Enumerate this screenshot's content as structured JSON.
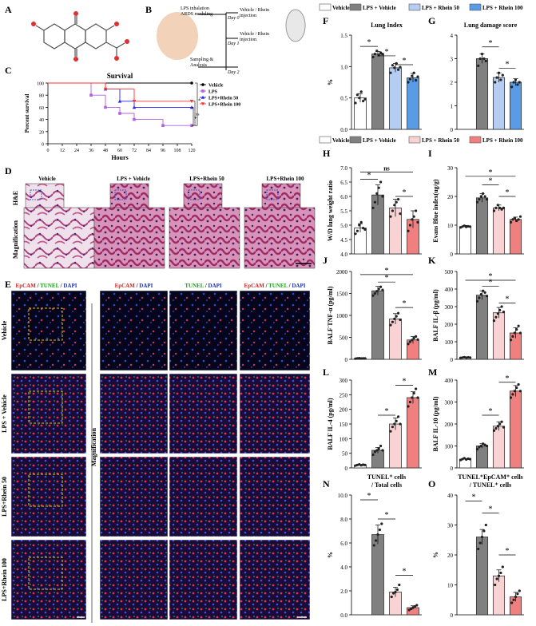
{
  "panel_letters": [
    "A",
    "B",
    "C",
    "D",
    "E",
    "F",
    "G",
    "H",
    "I",
    "J",
    "K",
    "L",
    "M",
    "N",
    "O"
  ],
  "schematic": {
    "labels": [
      "LPS inhalation\nARDS modeling",
      "Day 0",
      "Vehicle / Rhein\ninjection",
      "Day 1",
      "Vehicle / Rhein\ninjection",
      "Sampling &\nAnalysis",
      "Day 2"
    ]
  },
  "legend_top": {
    "items": [
      {
        "label": "Vehicle",
        "color": "#ffffff"
      },
      {
        "label": "LPS + Vehicle",
        "color": "#808080"
      },
      {
        "label": "LPS + Rhein 50",
        "color": "#b4cdf0"
      },
      {
        "label": "LPS + Rhein 100",
        "color": "#5a9be6"
      }
    ]
  },
  "legend_mid": {
    "items": [
      {
        "label": "Vehicle",
        "color": "#ffffff"
      },
      {
        "label": "LPS + Vehicle",
        "color": "#808080"
      },
      {
        "label": "LPS + Rhein 50",
        "color": "#f9d3d3"
      },
      {
        "label": "LPS + Rhein 100",
        "color": "#f08080"
      }
    ]
  },
  "histology": {
    "columns": [
      "Vehicle",
      "LPS + Vehicle",
      "LPS+Rhein 50",
      "LPS+Rhein 100"
    ],
    "rows": [
      "H&E",
      "Magnification"
    ]
  },
  "fluorescence": {
    "column_titles": [
      [
        {
          "t": "EpCAM",
          "c": "#e02020"
        },
        {
          "t": " / ",
          "c": "#000"
        },
        {
          "t": "TUNEL",
          "c": "#1aa01a"
        },
        {
          "t": " / ",
          "c": "#000"
        },
        {
          "t": "DAPI",
          "c": "#1a30c0"
        }
      ],
      [
        {
          "t": "EpCAM",
          "c": "#e02020"
        },
        {
          "t": " / ",
          "c": "#000"
        },
        {
          "t": "DAPI",
          "c": "#1a30c0"
        }
      ],
      [
        {
          "t": "TUNEL",
          "c": "#1aa01a"
        },
        {
          "t": " / ",
          "c": "#000"
        },
        {
          "t": "DAPI",
          "c": "#1a30c0"
        }
      ],
      [
        {
          "t": "EpCAM",
          "c": "#e02020"
        },
        {
          "t": " / ",
          "c": "#000"
        },
        {
          "t": "TUNEL",
          "c": "#1aa01a"
        },
        {
          "t": " / ",
          "c": "#000"
        },
        {
          "t": "DAPI",
          "c": "#1a30c0"
        }
      ]
    ],
    "rows": [
      "Vehicle",
      "LPS + Vehicle",
      "LPS+Rhein 50",
      "LPS+Rhein 100"
    ],
    "side_label": "Magnification"
  },
  "chart_data": [
    {
      "id": "C",
      "type": "line",
      "title": "Survival",
      "xlabel": "Hours",
      "ylabel": "Percent survival",
      "xlim": [
        0,
        120
      ],
      "ylim": [
        0,
        100
      ],
      "xticks": [
        0,
        12,
        24,
        36,
        48,
        60,
        72,
        84,
        96,
        108,
        120
      ],
      "yticks": [
        0,
        20,
        40,
        60,
        80,
        100
      ],
      "series": [
        {
          "name": "Vehicle",
          "color": "#000000",
          "marker": "circle",
          "points": [
            [
              0,
              100
            ],
            [
              120,
              100
            ]
          ]
        },
        {
          "name": "LPS",
          "color": "#b060e0",
          "marker": "square",
          "points": [
            [
              0,
              100
            ],
            [
              36,
              100
            ],
            [
              36,
              80
            ],
            [
              48,
              80
            ],
            [
              48,
              60
            ],
            [
              60,
              60
            ],
            [
              60,
              50
            ],
            [
              72,
              50
            ],
            [
              72,
              40
            ],
            [
              84,
              40
            ],
            [
              84,
              40
            ],
            [
              96,
              40
            ],
            [
              96,
              30
            ],
            [
              120,
              30
            ]
          ]
        },
        {
          "name": "LPS+Rhein 50",
          "color": "#2020ff",
          "marker": "triangle",
          "points": [
            [
              0,
              100
            ],
            [
              48,
              100
            ],
            [
              48,
              90
            ],
            [
              60,
              90
            ],
            [
              60,
              70
            ],
            [
              72,
              70
            ],
            [
              72,
              60
            ],
            [
              120,
              60
            ]
          ]
        },
        {
          "name": "LPS+Rhein 100",
          "color": "#ff3030",
          "marker": "invtriangle",
          "points": [
            [
              0,
              100
            ],
            [
              48,
              100
            ],
            [
              48,
              90
            ],
            [
              72,
              90
            ],
            [
              72,
              70
            ],
            [
              120,
              70
            ]
          ]
        }
      ],
      "annotations": [
        "*",
        "ns",
        "*"
      ]
    },
    {
      "id": "F",
      "type": "bar",
      "title": "Lung Index",
      "ylabel": "%",
      "ylim": [
        0,
        1.5
      ],
      "yticks": [
        0,
        0.5,
        1.0,
        1.5
      ],
      "yfmt": 1,
      "palette": "blue",
      "categories": [
        "Vehicle",
        "LPS + Vehicle",
        "LPS + Rhein 50",
        "LPS + Rhein 100"
      ],
      "values": [
        0.5,
        1.2,
        0.98,
        0.82
      ],
      "errors": [
        0.07,
        0.04,
        0.07,
        0.07
      ],
      "points": [
        [
          0.42,
          0.55,
          0.5,
          0.6,
          0.45,
          0.48
        ],
        [
          1.15,
          1.2,
          1.25,
          1.18,
          1.22,
          1.2
        ],
        [
          0.9,
          1.02,
          0.98,
          1.05,
          0.95,
          0.99
        ],
        [
          0.75,
          0.8,
          0.85,
          0.9,
          0.78,
          0.84
        ]
      ],
      "sig": [
        [
          0,
          1,
          1.32,
          "*"
        ],
        [
          1,
          2,
          1.17,
          "*"
        ],
        [
          2,
          3,
          1.03,
          "*"
        ]
      ]
    },
    {
      "id": "G",
      "type": "bar",
      "title": "Lung damage score",
      "ylabel": "",
      "ylim": [
        0,
        4
      ],
      "yticks": [
        0,
        1,
        2,
        3,
        4
      ],
      "palette": "blue",
      "categories": [
        "Vehicle",
        "LPS + Vehicle",
        "LPS + Rhein 50",
        "LPS + Rhein 100"
      ],
      "values": [
        null,
        3.0,
        2.2,
        2.0
      ],
      "errors": [
        0,
        0.2,
        0.2,
        0.15
      ],
      "points": [
        [],
        [
          2.7,
          3.0,
          3.2,
          3.0,
          2.9
        ],
        [
          2.0,
          2.2,
          2.4,
          2.1,
          2.3
        ],
        [
          1.8,
          2.0,
          2.1,
          1.9,
          2.0
        ]
      ],
      "sig": [
        [
          1,
          2,
          3.5,
          "*"
        ],
        [
          2,
          3,
          2.6,
          "*"
        ]
      ]
    },
    {
      "id": "H",
      "type": "bar",
      "title": "",
      "ylabel": "W/D lung weight ratio",
      "ylim": [
        4.0,
        7.0
      ],
      "yticks": [
        4.0,
        4.5,
        5.0,
        5.5,
        6.0,
        6.5,
        7.0
      ],
      "yfmt": 1,
      "palette": "red",
      "categories": [
        "Vehicle",
        "LPS + Vehicle",
        "LPS + Rhein 50",
        "LPS + Rhein 100"
      ],
      "values": [
        4.9,
        6.05,
        5.6,
        5.2
      ],
      "errors": [
        0.15,
        0.35,
        0.3,
        0.3
      ],
      "points": [
        [
          4.7,
          4.8,
          5.0,
          5.1,
          4.9,
          4.85
        ],
        [
          5.6,
          5.8,
          6.1,
          6.3,
          6.5,
          6.0
        ],
        [
          5.3,
          5.5,
          5.7,
          5.8,
          5.9,
          5.4
        ],
        [
          4.8,
          5.0,
          5.2,
          5.3,
          5.5,
          5.1
        ]
      ],
      "sig": [
        [
          0,
          3,
          6.85,
          "ns"
        ],
        [
          0,
          1,
          6.6,
          "*"
        ],
        [
          2,
          3,
          6.0,
          "*"
        ]
      ]
    },
    {
      "id": "I",
      "type": "bar",
      "title": "",
      "ylabel": "Evans Blue index(ug/g)",
      "ylim": [
        0,
        30
      ],
      "yticks": [
        0,
        10,
        20,
        30
      ],
      "palette": "red",
      "categories": [
        "Vehicle",
        "LPS + Vehicle",
        "LPS + Rhein 50",
        "LPS + Rhein 100"
      ],
      "values": [
        9.5,
        19.5,
        16.0,
        12.0
      ],
      "errors": [
        0.4,
        1.5,
        1.0,
        0.8
      ],
      "points": [
        [
          9.2,
          9.5,
          9.8,
          9.4,
          9.6,
          9.5
        ],
        [
          18,
          19,
          20,
          21,
          20,
          19
        ],
        [
          15,
          16,
          17,
          16,
          15.5,
          16
        ],
        [
          11,
          12,
          12.5,
          11.5,
          12,
          13
        ]
      ],
      "sig": [
        [
          0,
          3,
          27,
          "*"
        ],
        [
          1,
          2,
          24,
          "*"
        ],
        [
          2,
          3,
          20,
          "*"
        ]
      ]
    },
    {
      "id": "J",
      "type": "bar",
      "title": "",
      "ylabel": "BALF TNF-α (pg/ml)",
      "ylim": [
        0,
        2000
      ],
      "yticks": [
        0,
        500,
        1000,
        1500,
        2000
      ],
      "palette": "red",
      "categories": [
        "Vehicle",
        "LPS + Vehicle",
        "LPS + Rhein 50",
        "LPS + Rhein 100"
      ],
      "values": [
        20,
        1560,
        920,
        440
      ],
      "errors": [
        5,
        100,
        120,
        80
      ],
      "points": [
        [
          15,
          20,
          25,
          18,
          22,
          20
        ],
        [
          1450,
          1500,
          1550,
          1600,
          1650,
          1580
        ],
        [
          780,
          850,
          920,
          980,
          1050,
          900
        ],
        [
          350,
          400,
          440,
          480,
          520,
          450
        ]
      ],
      "sig": [
        [
          0,
          3,
          1930,
          "*"
        ],
        [
          1,
          2,
          1760,
          "*"
        ],
        [
          2,
          3,
          1180,
          "*"
        ]
      ]
    },
    {
      "id": "K",
      "type": "bar",
      "title": "",
      "ylabel": "BALF IL-β (pg/ml)",
      "ylim": [
        0,
        500
      ],
      "yticks": [
        0,
        100,
        200,
        300,
        400,
        500
      ],
      "palette": "red",
      "categories": [
        "Vehicle",
        "LPS + Vehicle",
        "LPS + Rhein 50",
        "LPS + Rhein 100"
      ],
      "values": [
        10,
        365,
        265,
        150
      ],
      "errors": [
        3,
        25,
        30,
        30
      ],
      "points": [
        [
          8,
          10,
          12,
          9,
          11,
          10
        ],
        [
          330,
          350,
          370,
          390,
          380,
          360
        ],
        [
          220,
          240,
          260,
          280,
          300,
          270
        ],
        [
          110,
          130,
          150,
          170,
          190,
          150
        ]
      ],
      "sig": [
        [
          0,
          3,
          450,
          "*"
        ],
        [
          1,
          2,
          415,
          "*"
        ],
        [
          2,
          3,
          320,
          "*"
        ]
      ]
    },
    {
      "id": "L",
      "type": "bar",
      "title": "",
      "ylabel": "BALF IL-4 (pg/ml)",
      "ylim": [
        0,
        300
      ],
      "yticks": [
        0,
        50,
        100,
        150,
        200,
        250,
        300
      ],
      "palette": "red",
      "categories": [
        "Vehicle",
        "LPS + Vehicle",
        "LPS + Rhein 50",
        "LPS + Rhein 100"
      ],
      "values": [
        10,
        60,
        150,
        240
      ],
      "errors": [
        2,
        10,
        20,
        20
      ],
      "points": [
        [
          8,
          10,
          12,
          9,
          11,
          10
        ],
        [
          45,
          55,
          60,
          65,
          75,
          60
        ],
        [
          125,
          140,
          150,
          160,
          175,
          150
        ],
        [
          210,
          225,
          240,
          255,
          270,
          240
        ]
      ],
      "sig": [
        [
          1,
          2,
          180,
          "*"
        ],
        [
          2,
          3,
          282,
          "*"
        ]
      ]
    },
    {
      "id": "M",
      "type": "bar",
      "title": "",
      "ylabel": "BALF IL-10 (pg/ml)",
      "ylim": [
        0,
        400
      ],
      "yticks": [
        0,
        100,
        200,
        300,
        400
      ],
      "palette": "red",
      "categories": [
        "Vehicle",
        "LPS + Vehicle",
        "LPS + Rhein 50",
        "LPS + Rhein 100"
      ],
      "values": [
        40,
        100,
        190,
        350
      ],
      "errors": [
        3,
        10,
        20,
        25
      ],
      "points": [
        [
          36,
          40,
          44,
          38,
          42,
          40
        ],
        [
          85,
          95,
          100,
          110,
          105,
          100
        ],
        [
          170,
          180,
          190,
          200,
          210,
          185
        ],
        [
          320,
          335,
          350,
          365,
          380,
          350
        ]
      ],
      "sig": [
        [
          1,
          2,
          240,
          "*"
        ],
        [
          2,
          3,
          390,
          "*"
        ]
      ]
    },
    {
      "id": "N",
      "type": "bar",
      "title": "TUNEL⁺ cells\n/ Total cells",
      "ylabel": "%",
      "ylim": [
        0,
        10
      ],
      "yticks": [
        0,
        2,
        4,
        6,
        8,
        10
      ],
      "yfmt": 1,
      "palette": "grey",
      "categories": [
        "Vehicle",
        "LPS + Vehicle",
        "LPS + Rhein 50",
        "LPS + Rhein 100"
      ],
      "values": [
        null,
        6.7,
        1.9,
        0.6
      ],
      "errors": [
        0,
        0.8,
        0.4,
        0.15
      ],
      "points": [
        [],
        [
          5.8,
          6.2,
          6.7,
          7.1,
          7.6
        ],
        [
          1.5,
          1.8,
          1.9,
          2.1,
          2.5
        ],
        [
          0.4,
          0.5,
          0.6,
          0.7,
          0.8
        ]
      ],
      "sig": [
        [
          0,
          1,
          9.6,
          "*"
        ],
        [
          1,
          2,
          8.0,
          "*"
        ],
        [
          2,
          3,
          3.3,
          "*"
        ]
      ]
    },
    {
      "id": "O",
      "type": "bar",
      "title": "TUNEL⁺EpCAM⁺ cells\n/ TUNEL⁺ cells",
      "ylabel": "%",
      "ylim": [
        0,
        40
      ],
      "yticks": [
        0,
        10,
        20,
        30,
        40
      ],
      "palette": "grey",
      "categories": [
        "Vehicle",
        "LPS + Vehicle",
        "LPS + Rhein 50",
        "LPS + Rhein 100"
      ],
      "values": [
        null,
        26,
        13,
        6
      ],
      "errors": [
        0,
        2.5,
        2.0,
        1.5
      ],
      "points": [
        [],
        [
          22,
          24,
          26,
          28,
          30
        ],
        [
          10,
          12,
          13,
          14,
          16
        ],
        [
          4,
          5,
          6,
          7,
          8
        ]
      ],
      "sig": [
        [
          0,
          1,
          38,
          "*"
        ],
        [
          1,
          2,
          34,
          "*"
        ],
        [
          2,
          3,
          20,
          "*"
        ]
      ]
    }
  ]
}
